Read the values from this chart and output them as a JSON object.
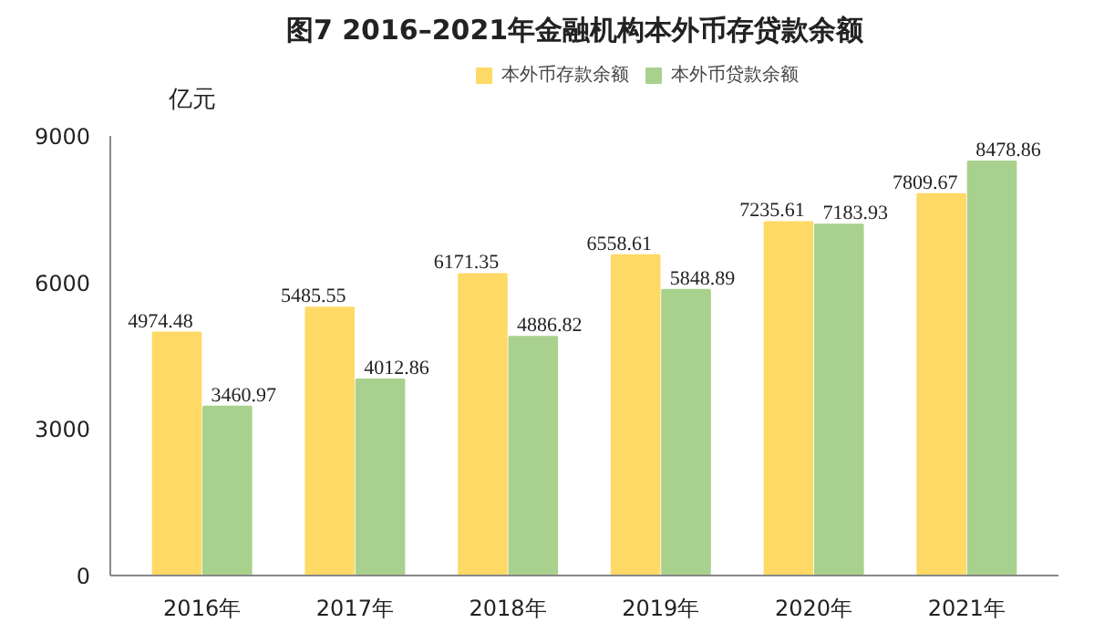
{
  "chart_data": {
    "type": "bar",
    "title": "图7   2016–2021年金融机构本外币存贷款余额",
    "ylabel": "亿元",
    "categories": [
      "2016年",
      "2017年",
      "2018年",
      "2019年",
      "2020年",
      "2021年"
    ],
    "series": [
      {
        "name": "本外币存款余额",
        "color": "#ffd966",
        "values": [
          4974.48,
          5485.55,
          6171.35,
          6558.61,
          7235.61,
          7809.67
        ]
      },
      {
        "name": "本外币贷款余额",
        "color": "#a9d18e",
        "values": [
          3460.97,
          4012.86,
          4886.82,
          5848.89,
          7183.93,
          8478.86
        ]
      }
    ],
    "ylim": [
      0,
      9000
    ],
    "yticks": [
      0,
      3000,
      6000,
      9000
    ],
    "grid": false,
    "legend": "top",
    "data_labels": true
  }
}
